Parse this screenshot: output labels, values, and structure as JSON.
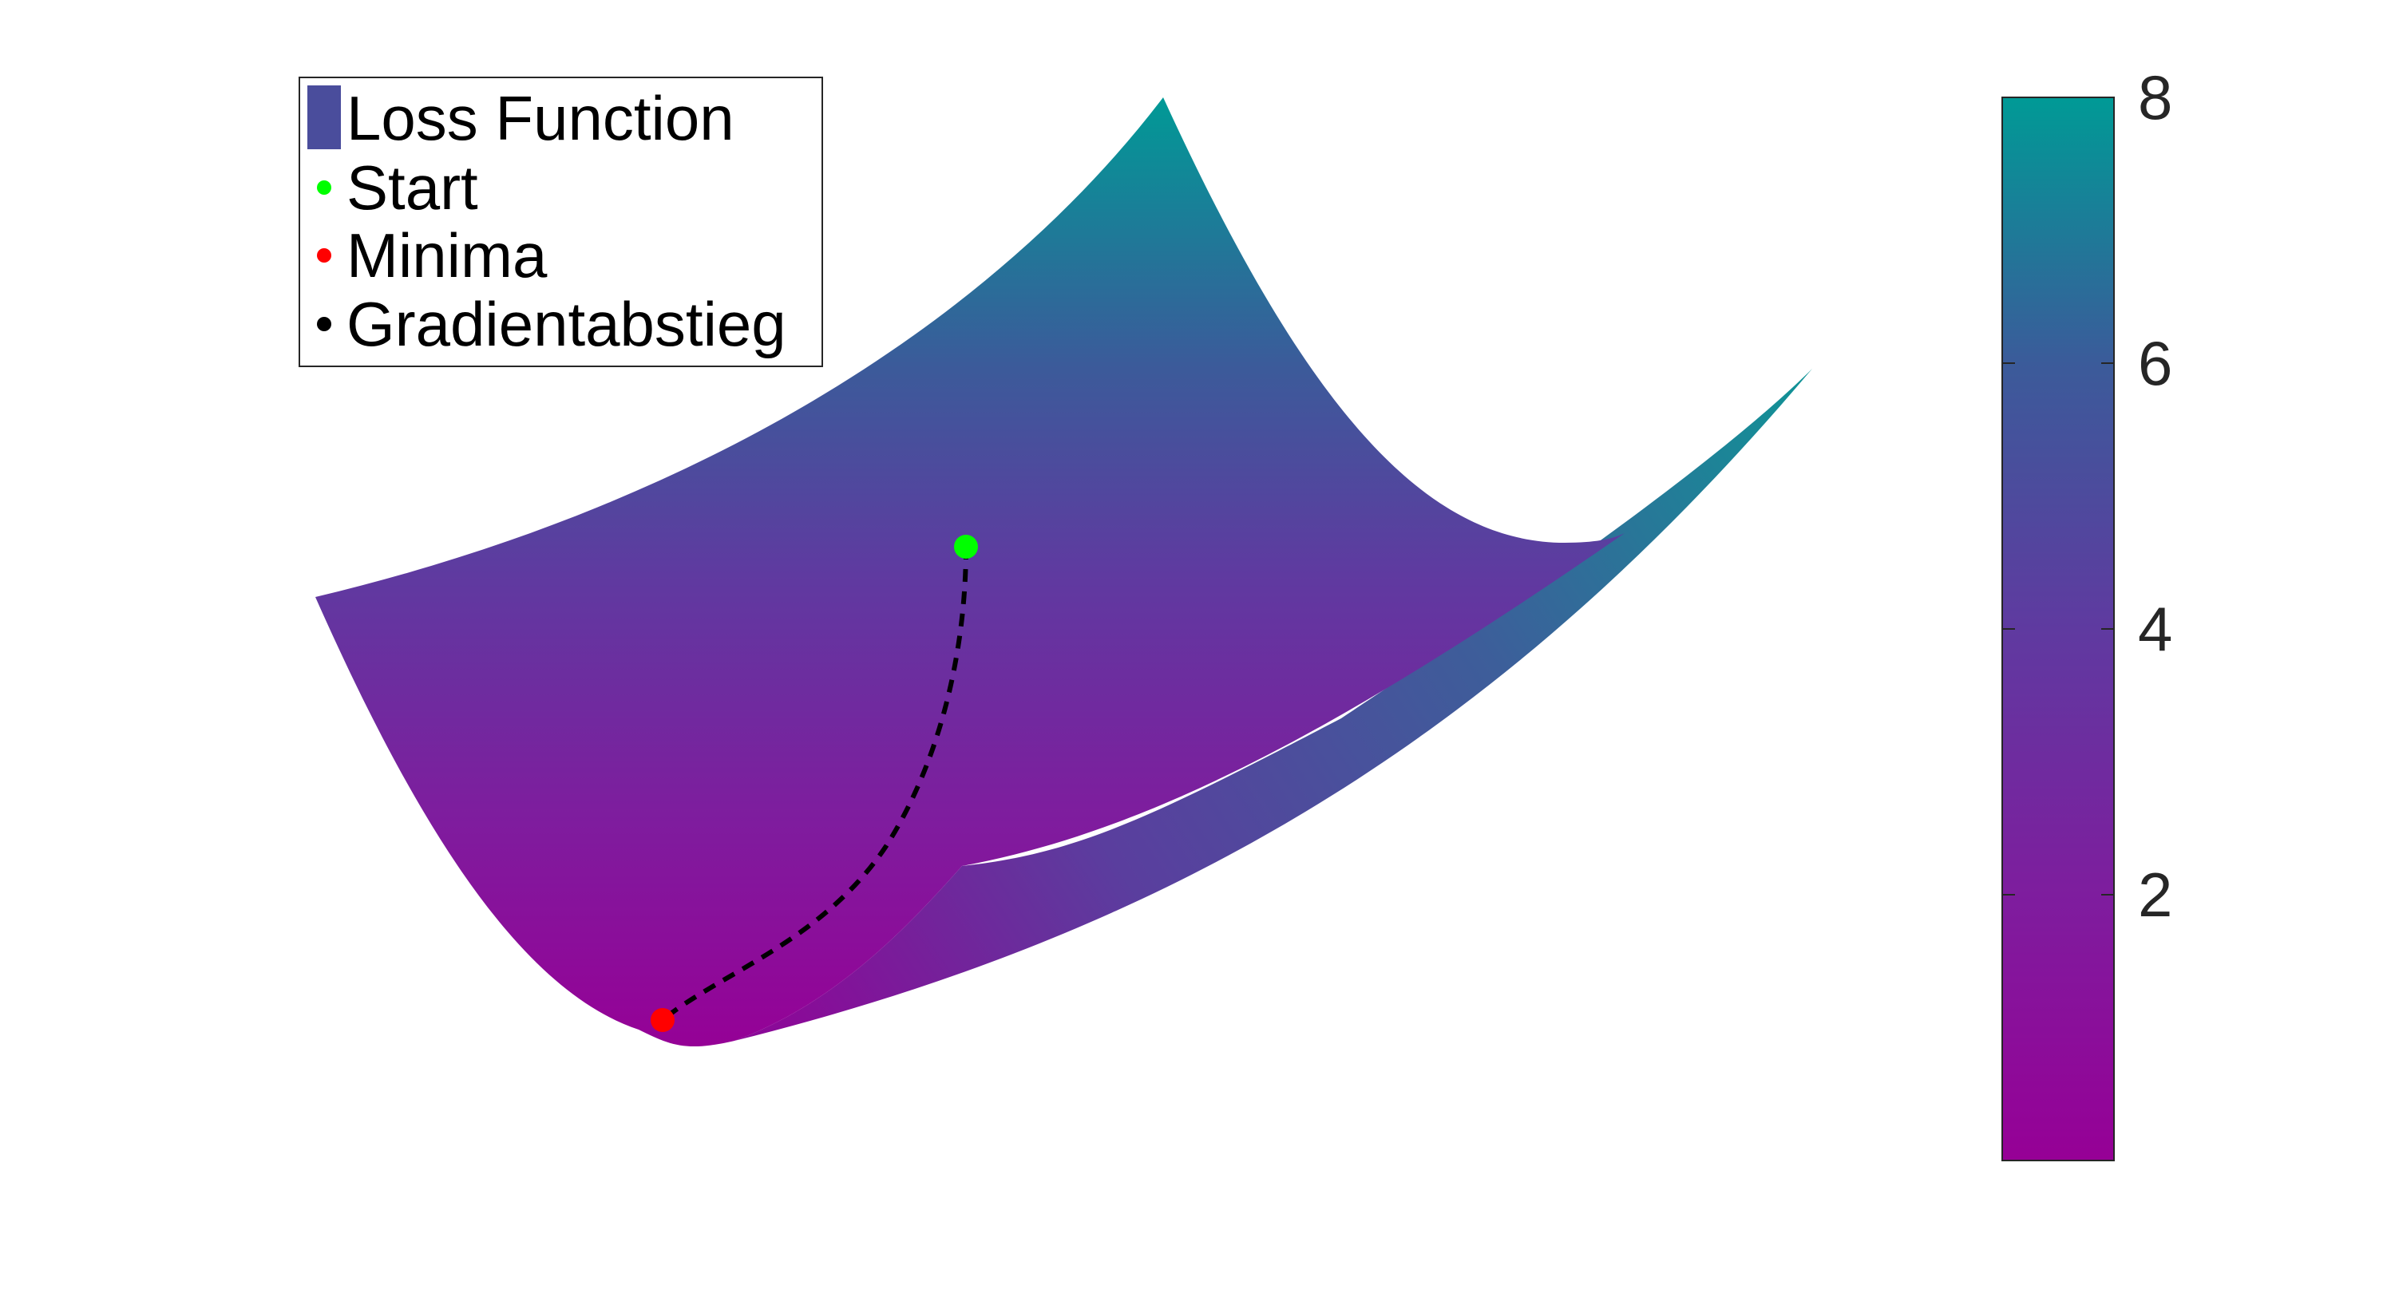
{
  "chart_data": {
    "type": "surface",
    "title": "",
    "xlabel": "",
    "ylabel": "",
    "zlabel": "",
    "grid": false,
    "axes_visible": false,
    "legend_placement": "top-left",
    "legend": [
      {
        "label": "Loss Function",
        "marker": "patch",
        "color": "#4a4d9c"
      },
      {
        "label": "Start",
        "marker": "dot",
        "color": "#00ff00"
      },
      {
        "label": "Minima",
        "marker": "dot",
        "color": "#ff0000"
      },
      {
        "label": "Gradientabstieg",
        "marker": "dot",
        "color": "#000000"
      }
    ],
    "colorbar": {
      "range": [
        0,
        8
      ],
      "ticks": [
        2,
        4,
        6,
        8
      ],
      "tick_labels": [
        "2",
        "4",
        "6",
        "8"
      ],
      "color_low": "#960096",
      "color_high": "#009a96"
    },
    "series": [
      {
        "name": "Loss Function",
        "kind": "surface"
      },
      {
        "name": "Start",
        "kind": "point",
        "color": "#00ff00"
      },
      {
        "name": "Minima",
        "kind": "point",
        "color": "#ff0000"
      },
      {
        "name": "Gradientabstieg",
        "kind": "dashed-path",
        "color": "#000000"
      }
    ]
  }
}
